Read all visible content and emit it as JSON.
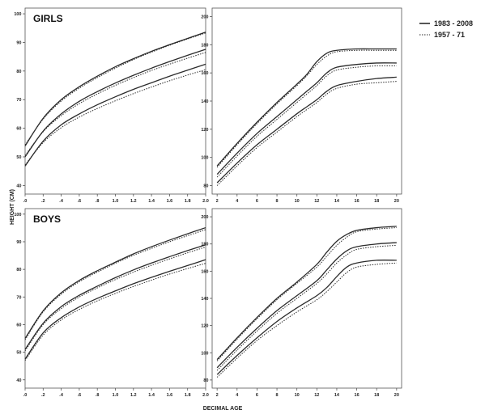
{
  "figure": {
    "ylabel": "HEIGHT (CM)",
    "xlabel": "DECIMAL AGE"
  },
  "legend": {
    "items": [
      {
        "label": "1983 - 2008",
        "style": "solid"
      },
      {
        "label": "1957 - 71",
        "style": "dotted"
      }
    ]
  },
  "colors": {
    "line": "#2b2b2b",
    "axis": "#555555",
    "text": "#222222"
  },
  "chart_data": [
    {
      "type": "line",
      "label": "GIRLS",
      "xlim": [
        0,
        2.0
      ],
      "ylim": [
        37,
        102
      ],
      "xticks": [
        0,
        0.2,
        0.4,
        0.6,
        0.8,
        1.0,
        1.2,
        1.4,
        1.6,
        1.8,
        2.0
      ],
      "xtick_labels": [
        ".0",
        ".2",
        ".4",
        ".6",
        ".8",
        "1.0",
        "1.2",
        "1.4",
        "1.6",
        "1.8",
        "2.0"
      ],
      "yticks": [
        40,
        50,
        60,
        70,
        80,
        90,
        100
      ],
      "ytick_labels": [
        "40",
        "50",
        "60",
        "70",
        "80",
        "90",
        "100"
      ],
      "x": [
        0,
        0.2,
        0.4,
        0.6,
        0.8,
        1.0,
        1.2,
        1.4,
        1.6,
        1.8,
        2.0
      ],
      "series": [
        {
          "group": "1983 - 2008",
          "style": "solid",
          "values": [
            53.8,
            63.5,
            70.0,
            74.5,
            78.2,
            81.5,
            84.3,
            86.9,
            89.2,
            91.4,
            93.6
          ]
        },
        {
          "group": "1983 - 2008",
          "style": "solid",
          "values": [
            50.0,
            59.0,
            65.0,
            69.4,
            72.8,
            75.8,
            78.5,
            81.0,
            83.3,
            85.5,
            87.6
          ]
        },
        {
          "group": "1983 - 2008",
          "style": "solid",
          "values": [
            46.8,
            55.5,
            61.2,
            65.0,
            68.2,
            71.0,
            73.6,
            75.9,
            78.2,
            80.3,
            82.4
          ]
        },
        {
          "group": "1957 - 71",
          "style": "dotted",
          "values": [
            54.2,
            63.2,
            69.5,
            74.0,
            77.7,
            81.0,
            84.0,
            86.6,
            89.0,
            91.2,
            93.3
          ]
        },
        {
          "group": "1957 - 71",
          "style": "dotted",
          "values": [
            50.5,
            58.8,
            64.4,
            68.6,
            72.0,
            75.0,
            77.7,
            80.2,
            82.4,
            84.5,
            86.5
          ]
        },
        {
          "group": "1957 - 71",
          "style": "dotted",
          "values": [
            47.2,
            55.0,
            60.2,
            63.9,
            66.9,
            69.6,
            72.1,
            74.4,
            76.6,
            78.6,
            80.5
          ]
        }
      ]
    },
    {
      "type": "line",
      "label": "",
      "xlim": [
        1.5,
        20.5
      ],
      "ylim": [
        74,
        206
      ],
      "xticks": [
        2,
        4,
        6,
        8,
        10,
        12,
        14,
        16,
        18,
        20
      ],
      "xtick_labels": [
        "2",
        "4",
        "6",
        "8",
        "10",
        "12",
        "14",
        "16",
        "18",
        "20"
      ],
      "yticks": [
        80,
        100,
        120,
        140,
        160,
        180,
        200
      ],
      "ytick_labels": [
        "80",
        "100",
        "120",
        "140",
        "160",
        "180",
        "200"
      ],
      "x": [
        2,
        4,
        6,
        8,
        10,
        11,
        12,
        13,
        14,
        16,
        18,
        20
      ],
      "series": [
        {
          "group": "1983 - 2008",
          "style": "solid",
          "values": [
            94,
            110,
            125,
            139,
            152,
            159,
            168,
            174,
            176,
            177,
            177,
            177
          ]
        },
        {
          "group": "1983 - 2008",
          "style": "solid",
          "values": [
            88,
            103,
            117,
            129,
            141,
            147,
            153,
            160,
            164,
            166,
            167,
            167
          ]
        },
        {
          "group": "1983 - 2008",
          "style": "solid",
          "values": [
            82,
            96,
            109,
            120,
            131,
            136,
            141,
            147,
            151,
            154,
            156,
            157
          ]
        },
        {
          "group": "1957 - 71",
          "style": "dotted",
          "values": [
            93,
            109,
            124,
            138,
            151,
            158,
            166,
            172,
            175,
            176,
            176,
            176
          ]
        },
        {
          "group": "1957 - 71",
          "style": "dotted",
          "values": [
            86,
            101,
            115,
            127,
            139,
            145,
            151,
            158,
            162,
            164,
            165,
            165
          ]
        },
        {
          "group": "1957 - 71",
          "style": "dotted",
          "values": [
            80,
            94,
            107,
            118,
            129,
            134,
            139,
            145,
            149,
            152,
            153,
            154
          ]
        }
      ]
    },
    {
      "type": "line",
      "label": "BOYS",
      "xlim": [
        0,
        2.0
      ],
      "ylim": [
        37,
        102
      ],
      "xticks": [
        0,
        0.2,
        0.4,
        0.6,
        0.8,
        1.0,
        1.2,
        1.4,
        1.6,
        1.8,
        2.0
      ],
      "xtick_labels": [
        ".0",
        ".2",
        ".4",
        ".6",
        ".8",
        "1.0",
        "1.2",
        "1.4",
        "1.6",
        "1.8",
        "2.0"
      ],
      "yticks": [
        40,
        50,
        60,
        70,
        80,
        90,
        100
      ],
      "ytick_labels": [
        "40",
        "50",
        "60",
        "70",
        "80",
        "90",
        "100"
      ],
      "x": [
        0,
        0.2,
        0.4,
        0.6,
        0.8,
        1.0,
        1.2,
        1.4,
        1.6,
        1.8,
        2.0
      ],
      "series": [
        {
          "group": "1983 - 2008",
          "style": "solid",
          "values": [
            55.0,
            65.0,
            71.5,
            76.0,
            79.5,
            82.6,
            85.6,
            88.2,
            90.6,
            92.9,
            95.1
          ]
        },
        {
          "group": "1983 - 2008",
          "style": "solid",
          "values": [
            51.0,
            60.5,
            66.5,
            70.6,
            73.9,
            77.0,
            79.8,
            82.3,
            84.6,
            86.8,
            88.9
          ]
        },
        {
          "group": "1983 - 2008",
          "style": "solid",
          "values": [
            47.5,
            57.0,
            62.5,
            66.4,
            69.5,
            72.2,
            74.8,
            77.1,
            79.3,
            81.4,
            83.5
          ]
        },
        {
          "group": "1957 - 71",
          "style": "dotted",
          "values": [
            54.5,
            64.6,
            71.0,
            75.5,
            79.0,
            82.2,
            85.1,
            87.6,
            90.0,
            92.2,
            94.4
          ]
        },
        {
          "group": "1957 - 71",
          "style": "dotted",
          "values": [
            50.5,
            60.0,
            65.8,
            70.0,
            73.3,
            76.3,
            79.0,
            81.5,
            83.8,
            86.0,
            88.1
          ]
        },
        {
          "group": "1957 - 71",
          "style": "dotted",
          "values": [
            47.0,
            56.2,
            61.7,
            65.5,
            68.6,
            71.3,
            73.8,
            76.1,
            78.3,
            80.3,
            82.2
          ]
        }
      ]
    },
    {
      "type": "line",
      "label": "",
      "xlim": [
        1.5,
        20.5
      ],
      "ylim": [
        74,
        206
      ],
      "xticks": [
        2,
        4,
        6,
        8,
        10,
        12,
        14,
        16,
        18,
        20
      ],
      "xtick_labels": [
        "2",
        "4",
        "6",
        "8",
        "10",
        "12",
        "14",
        "16",
        "18",
        "20"
      ],
      "yticks": [
        80,
        100,
        120,
        140,
        160,
        180,
        200
      ],
      "ytick_labels": [
        "80",
        "100",
        "120",
        "140",
        "160",
        "180",
        "200"
      ],
      "x": [
        2,
        4,
        6,
        8,
        10,
        12,
        13,
        14,
        15,
        16,
        18,
        20
      ],
      "series": [
        {
          "group": "1983 - 2008",
          "style": "solid",
          "values": [
            95,
            111,
            126,
            140,
            152,
            165,
            174,
            182,
            187,
            190,
            192,
            193
          ]
        },
        {
          "group": "1983 - 2008",
          "style": "solid",
          "values": [
            89,
            104,
            118,
            131,
            142,
            153,
            161,
            169,
            175,
            178,
            180,
            181
          ]
        },
        {
          "group": "1983 - 2008",
          "style": "solid",
          "values": [
            84,
            98,
            111,
            123,
            133,
            142,
            148,
            156,
            163,
            166,
            168,
            168
          ]
        },
        {
          "group": "1957 - 71",
          "style": "dotted",
          "values": [
            94,
            110,
            125,
            139,
            151,
            163,
            171,
            179,
            185,
            189,
            191,
            192
          ]
        },
        {
          "group": "1957 - 71",
          "style": "dotted",
          "values": [
            87,
            102,
            116,
            129,
            140,
            151,
            158,
            166,
            172,
            176,
            178,
            179
          ]
        },
        {
          "group": "1957 - 71",
          "style": "dotted",
          "values": [
            82,
            96,
            109,
            120,
            130,
            139,
            145,
            152,
            159,
            163,
            165,
            166
          ]
        }
      ]
    }
  ]
}
